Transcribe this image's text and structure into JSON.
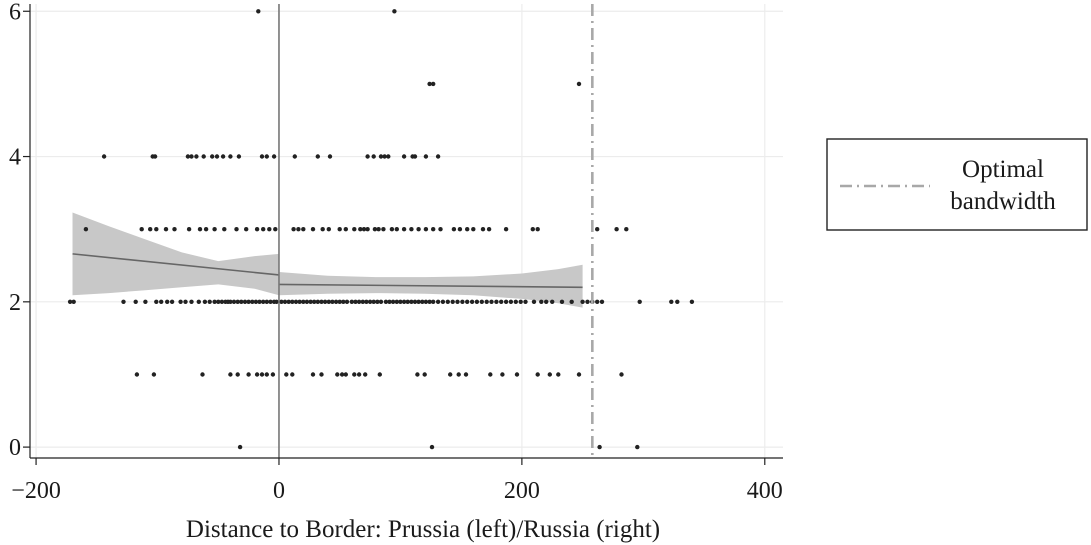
{
  "chart_data": {
    "type": "scatter",
    "title": "",
    "xlabel": "Distance to Border: Prussia (left)/Russia (right)",
    "ylabel": "",
    "xlim": [
      -205,
      415
    ],
    "ylim": [
      -0.15,
      6.1
    ],
    "x_ticks": [
      -200,
      0,
      200,
      400
    ],
    "x_tick_labels": [
      "−200",
      "0",
      "200",
      "400"
    ],
    "y_ticks": [
      0,
      2,
      4,
      6
    ],
    "y_tick_labels": [
      "0",
      "2",
      "4",
      "6"
    ],
    "grid": true,
    "border_x": 0,
    "optimal_bandwidth_x": 258,
    "legend": {
      "position": "right",
      "entries": [
        "Optimal\nbandwidth"
      ]
    },
    "colors": {
      "points": "#222222",
      "fit_line": "#666666",
      "ci_band": "#c8c8c8",
      "bandwidth_line": "#a8a8a8",
      "grid": "#ececec",
      "border_line": "#777777"
    },
    "series": [
      {
        "type": "scatter",
        "points": [
          [
            -17,
            6
          ],
          [
            95,
            6
          ],
          [
            124,
            5
          ],
          [
            127,
            5
          ],
          [
            247,
            5
          ],
          [
            -144,
            4
          ],
          [
            -104,
            4
          ],
          [
            -102,
            4
          ],
          [
            -75,
            4
          ],
          [
            -72,
            4
          ],
          [
            -68,
            4
          ],
          [
            -62,
            4
          ],
          [
            -55,
            4
          ],
          [
            -51,
            4
          ],
          [
            -46,
            4
          ],
          [
            -40,
            4
          ],
          [
            -33,
            4
          ],
          [
            -14,
            4
          ],
          [
            -10,
            4
          ],
          [
            -4,
            4
          ],
          [
            13,
            4
          ],
          [
            32,
            4
          ],
          [
            42,
            4
          ],
          [
            73,
            4
          ],
          [
            78,
            4
          ],
          [
            84,
            4
          ],
          [
            87,
            4
          ],
          [
            90,
            4
          ],
          [
            103,
            4
          ],
          [
            110,
            4
          ],
          [
            112,
            4
          ],
          [
            121,
            4
          ],
          [
            131,
            4
          ],
          [
            -159,
            3
          ],
          [
            -113,
            3
          ],
          [
            -106,
            3
          ],
          [
            -101,
            3
          ],
          [
            -93,
            3
          ],
          [
            -86,
            3
          ],
          [
            -74,
            3
          ],
          [
            -65,
            3
          ],
          [
            -60,
            3
          ],
          [
            -53,
            3
          ],
          [
            -45,
            3
          ],
          [
            -35,
            3
          ],
          [
            -27,
            3
          ],
          [
            -18,
            3
          ],
          [
            -13,
            3
          ],
          [
            -8,
            3
          ],
          [
            -3,
            3
          ],
          [
            12,
            3
          ],
          [
            16,
            3
          ],
          [
            20,
            3
          ],
          [
            28,
            3
          ],
          [
            36,
            3
          ],
          [
            41,
            3
          ],
          [
            50,
            3
          ],
          [
            55,
            3
          ],
          [
            62,
            3
          ],
          [
            67,
            3
          ],
          [
            70,
            3
          ],
          [
            73,
            3
          ],
          [
            79,
            3
          ],
          [
            82,
            3
          ],
          [
            86,
            3
          ],
          [
            93,
            3
          ],
          [
            97,
            3
          ],
          [
            103,
            3
          ],
          [
            109,
            3
          ],
          [
            115,
            3
          ],
          [
            121,
            3
          ],
          [
            127,
            3
          ],
          [
            133,
            3
          ],
          [
            144,
            3
          ],
          [
            149,
            3
          ],
          [
            155,
            3
          ],
          [
            160,
            3
          ],
          [
            168,
            3
          ],
          [
            173,
            3
          ],
          [
            187,
            3
          ],
          [
            209,
            3
          ],
          [
            213,
            3
          ],
          [
            262,
            3
          ],
          [
            278,
            3
          ],
          [
            286,
            3
          ],
          [
            -172,
            2
          ],
          [
            -169,
            2
          ],
          [
            -128,
            2
          ],
          [
            -118,
            2
          ],
          [
            -110,
            2
          ],
          [
            -101,
            2
          ],
          [
            -97,
            2
          ],
          [
            -92,
            2
          ],
          [
            -88,
            2
          ],
          [
            -81,
            2
          ],
          [
            -77,
            2
          ],
          [
            -72,
            2
          ],
          [
            -66,
            2
          ],
          [
            -61,
            2
          ],
          [
            -57,
            2
          ],
          [
            -53,
            2
          ],
          [
            -50,
            2
          ],
          [
            -47,
            2
          ],
          [
            -44,
            2
          ],
          [
            -42,
            2
          ],
          [
            -40,
            2
          ],
          [
            -37,
            2
          ],
          [
            -34,
            2
          ],
          [
            -31,
            2
          ],
          [
            -28,
            2
          ],
          [
            -25,
            2
          ],
          [
            -22,
            2
          ],
          [
            -19,
            2
          ],
          [
            -16,
            2
          ],
          [
            -13,
            2
          ],
          [
            -10,
            2
          ],
          [
            -7,
            2
          ],
          [
            -4,
            2
          ],
          [
            -2,
            2
          ],
          [
            2,
            2
          ],
          [
            5,
            2
          ],
          [
            8,
            2
          ],
          [
            11,
            2
          ],
          [
            14,
            2
          ],
          [
            17,
            2
          ],
          [
            20,
            2
          ],
          [
            23,
            2
          ],
          [
            26,
            2
          ],
          [
            29,
            2
          ],
          [
            32,
            2
          ],
          [
            35,
            2
          ],
          [
            38,
            2
          ],
          [
            41,
            2
          ],
          [
            44,
            2
          ],
          [
            47,
            2
          ],
          [
            50,
            2
          ],
          [
            53,
            2
          ],
          [
            56,
            2
          ],
          [
            60,
            2
          ],
          [
            63,
            2
          ],
          [
            66,
            2
          ],
          [
            69,
            2
          ],
          [
            72,
            2
          ],
          [
            75,
            2
          ],
          [
            78,
            2
          ],
          [
            81,
            2
          ],
          [
            84,
            2
          ],
          [
            88,
            2
          ],
          [
            91,
            2
          ],
          [
            94,
            2
          ],
          [
            97,
            2
          ],
          [
            100,
            2
          ],
          [
            103,
            2
          ],
          [
            106,
            2
          ],
          [
            109,
            2
          ],
          [
            112,
            2
          ],
          [
            115,
            2
          ],
          [
            118,
            2
          ],
          [
            121,
            2
          ],
          [
            124,
            2
          ],
          [
            127,
            2
          ],
          [
            131,
            2
          ],
          [
            135,
            2
          ],
          [
            139,
            2
          ],
          [
            143,
            2
          ],
          [
            147,
            2
          ],
          [
            151,
            2
          ],
          [
            155,
            2
          ],
          [
            159,
            2
          ],
          [
            163,
            2
          ],
          [
            167,
            2
          ],
          [
            171,
            2
          ],
          [
            175,
            2
          ],
          [
            179,
            2
          ],
          [
            183,
            2
          ],
          [
            187,
            2
          ],
          [
            191,
            2
          ],
          [
            195,
            2
          ],
          [
            199,
            2
          ],
          [
            203,
            2
          ],
          [
            210,
            2
          ],
          [
            216,
            2
          ],
          [
            220,
            2
          ],
          [
            225,
            2
          ],
          [
            233,
            2
          ],
          [
            241,
            2
          ],
          [
            250,
            2
          ],
          [
            254,
            2
          ],
          [
            258,
            2
          ],
          [
            262,
            2
          ],
          [
            266,
            2
          ],
          [
            297,
            2
          ],
          [
            323,
            2
          ],
          [
            328,
            2
          ],
          [
            340,
            2
          ],
          [
            -117,
            1
          ],
          [
            -103,
            1
          ],
          [
            -63,
            1
          ],
          [
            -40,
            1
          ],
          [
            -34,
            1
          ],
          [
            -25,
            1
          ],
          [
            -18,
            1
          ],
          [
            -14,
            1
          ],
          [
            -10,
            1
          ],
          [
            -5,
            1
          ],
          [
            6,
            1
          ],
          [
            11,
            1
          ],
          [
            28,
            1
          ],
          [
            35,
            1
          ],
          [
            48,
            1
          ],
          [
            52,
            1
          ],
          [
            55,
            1
          ],
          [
            62,
            1
          ],
          [
            66,
            1
          ],
          [
            71,
            1
          ],
          [
            83,
            1
          ],
          [
            114,
            1
          ],
          [
            120,
            1
          ],
          [
            141,
            1
          ],
          [
            148,
            1
          ],
          [
            154,
            1
          ],
          [
            174,
            1
          ],
          [
            184,
            1
          ],
          [
            196,
            1
          ],
          [
            213,
            1
          ],
          [
            223,
            1
          ],
          [
            230,
            1
          ],
          [
            247,
            1
          ],
          [
            282,
            1
          ],
          [
            -32,
            0
          ],
          [
            126,
            0
          ],
          [
            264,
            0
          ],
          [
            295,
            0
          ]
        ]
      },
      {
        "type": "line",
        "name": "",
        "segments": [
          [
            [
              -170,
              2.66
            ],
            [
              0,
              2.37
            ]
          ],
          [
            [
              0,
              2.24
            ],
            [
              250,
              2.2
            ]
          ]
        ]
      },
      {
        "type": "area",
        "name": "",
        "bands": [
          {
            "x": [
              -170,
              -140,
              -110,
              -80,
              -50,
              -20,
              0
            ],
            "lower": [
              2.09,
              2.12,
              2.16,
              2.2,
              2.24,
              2.18,
              2.09
            ],
            "upper": [
              3.23,
              3.04,
              2.86,
              2.68,
              2.56,
              2.63,
              2.66
            ]
          },
          {
            "x": [
              0,
              40,
              80,
              120,
              160,
              200,
              230,
              250
            ],
            "lower": [
              2.09,
              2.11,
              2.12,
              2.11,
              2.09,
              2.04,
              1.98,
              1.92
            ],
            "upper": [
              2.41,
              2.36,
              2.34,
              2.34,
              2.35,
              2.39,
              2.45,
              2.51
            ]
          }
        ]
      }
    ]
  }
}
